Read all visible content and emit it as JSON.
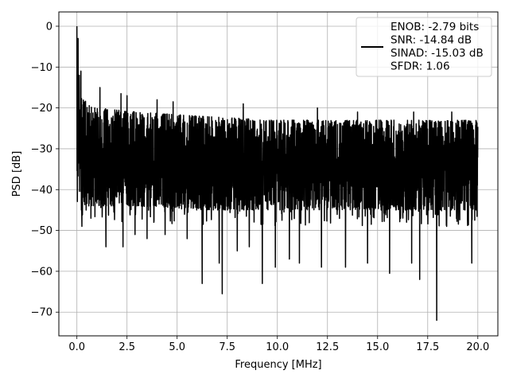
{
  "chart_data": {
    "type": "line",
    "xlabel": "Frequency [MHz]",
    "ylabel": "PSD [dB]",
    "xlim": [
      -0.9,
      21.0
    ],
    "ylim": [
      -75.8,
      3.5
    ],
    "xticks": [
      0.0,
      2.5,
      5.0,
      7.5,
      10.0,
      12.5,
      15.0,
      17.5,
      20.0
    ],
    "xtick_labels": [
      "0.0",
      "2.5",
      "5.0",
      "7.5",
      "10.0",
      "12.5",
      "15.0",
      "17.5",
      "20.0"
    ],
    "yticks": [
      0,
      -10,
      -20,
      -30,
      -40,
      -50,
      -60,
      -70
    ],
    "ytick_labels": [
      "0",
      "−10",
      "−20",
      "−30",
      "−40",
      "−50",
      "−60",
      "−70"
    ],
    "grid": true,
    "legend_position": "top-right",
    "series_color": "#000000",
    "legend": {
      "lines": [
        "ENOB: -2.79 bits",
        "SNR: -14.84 dB",
        "SINAD: -15.03 dB",
        "SFDR: 1.06"
      ]
    },
    "noise_profile": {
      "x": [
        0.0,
        0.3,
        1.0,
        3.0,
        6.0,
        10.0,
        15.0,
        20.0
      ],
      "upper": [
        -14,
        -18,
        -20,
        -21,
        -22,
        -23,
        -23,
        -23
      ],
      "lower": [
        -44,
        -44,
        -44,
        -44,
        -45,
        -45,
        -45,
        -45
      ]
    },
    "dips": [
      {
        "x": 0.25,
        "y": -49
      },
      {
        "x": 0.7,
        "y": -47
      },
      {
        "x": 1.45,
        "y": -54
      },
      {
        "x": 2.3,
        "y": -54
      },
      {
        "x": 2.9,
        "y": -51
      },
      {
        "x": 3.5,
        "y": -52
      },
      {
        "x": 4.4,
        "y": -51
      },
      {
        "x": 5.5,
        "y": -52
      },
      {
        "x": 6.25,
        "y": -63
      },
      {
        "x": 7.1,
        "y": -58
      },
      {
        "x": 7.25,
        "y": -65.5
      },
      {
        "x": 8.0,
        "y": -55
      },
      {
        "x": 8.6,
        "y": -54
      },
      {
        "x": 9.25,
        "y": -63
      },
      {
        "x": 9.9,
        "y": -59
      },
      {
        "x": 10.6,
        "y": -57
      },
      {
        "x": 11.1,
        "y": -58
      },
      {
        "x": 12.2,
        "y": -59
      },
      {
        "x": 13.4,
        "y": -59
      },
      {
        "x": 14.5,
        "y": -58
      },
      {
        "x": 15.6,
        "y": -60.5
      },
      {
        "x": 16.7,
        "y": -58
      },
      {
        "x": 17.1,
        "y": -62
      },
      {
        "x": 17.95,
        "y": -72
      },
      {
        "x": 18.7,
        "y": -57
      },
      {
        "x": 19.7,
        "y": -58
      }
    ],
    "peaks": [
      {
        "x": 0.0,
        "y": 0.0
      },
      {
        "x": 0.06,
        "y": -3
      },
      {
        "x": 0.12,
        "y": -12
      },
      {
        "x": 0.2,
        "y": -11
      },
      {
        "x": 1.15,
        "y": -15
      },
      {
        "x": 2.2,
        "y": -16.5
      },
      {
        "x": 2.5,
        "y": -17
      },
      {
        "x": 4.0,
        "y": -18
      },
      {
        "x": 4.8,
        "y": -18.5
      },
      {
        "x": 8.3,
        "y": -19
      },
      {
        "x": 12.0,
        "y": -20
      },
      {
        "x": 14.0,
        "y": -21
      },
      {
        "x": 16.8,
        "y": -21
      },
      {
        "x": 18.7,
        "y": -21
      }
    ]
  }
}
